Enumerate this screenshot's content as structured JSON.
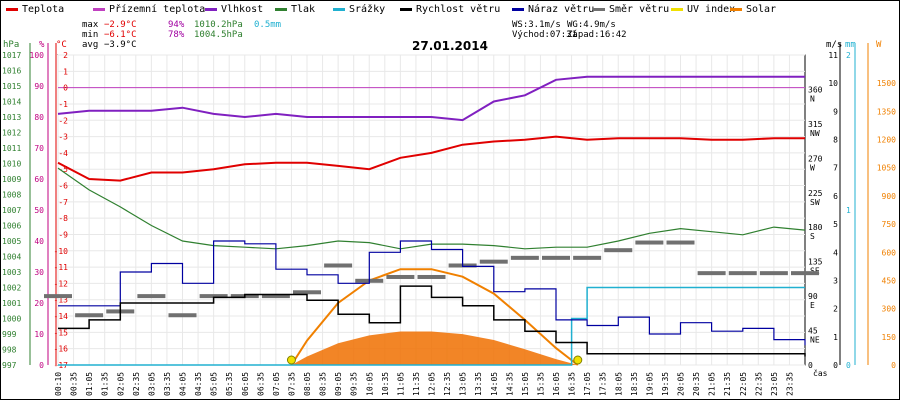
{
  "chart_data": {
    "type": "line",
    "title": "27.01.2014",
    "legend": [
      {
        "name": "Teplota",
        "color": "#e00000"
      },
      {
        "name": "Přízemní teplota",
        "color": "#c040c0"
      },
      {
        "name": "Vlhkost",
        "color": "#8020c0"
      },
      {
        "name": "Tlak",
        "color": "#308030"
      },
      {
        "name": "Srážky",
        "color": "#20b0d0"
      },
      {
        "name": "Rychlost větru",
        "color": "#000000"
      },
      {
        "name": "Náraz větru",
        "color": "#0000a0"
      },
      {
        "name": "Směr větru",
        "color": "#707070"
      },
      {
        "name": "UV index",
        "color": "#f0e000"
      },
      {
        "name": "Solar",
        "color": "#f08000"
      }
    ],
    "stats": {
      "max": {
        "label": "max",
        "temp": "−2.9°C",
        "hum": "94%",
        "press": "1010.2hPa",
        "rain": "0.5mm"
      },
      "min": {
        "label": "min",
        "temp": "−6.1°C",
        "hum": "78%",
        "press": "1004.5hPa"
      },
      "avg": {
        "label": "avg",
        "temp": "−3.9°C"
      }
    },
    "wind_info": {
      "ws": "WS:3.1m/s",
      "wg": "WG:4.9m/s",
      "sunrise": "Východ:07:31",
      "sunset": "Západ:16:42"
    },
    "axes": {
      "hpa": {
        "unit": "hPa",
        "color": "#308030",
        "range": [
          997,
          1017
        ],
        "ticks": [
          "1017",
          "1016",
          "1015",
          "1014",
          "1013",
          "1012",
          "1011",
          "1010",
          "1009",
          "1008",
          "1007",
          "1006",
          "1005",
          "1004",
          "1003",
          "1002",
          "1001",
          "1000",
          "999",
          "998",
          "997"
        ]
      },
      "humidity": {
        "unit": "%",
        "color": "#c00080",
        "range": [
          0,
          100
        ],
        "ticks": [
          "100",
          "90",
          "80",
          "70",
          "60",
          "50",
          "40",
          "30",
          "20",
          "10",
          "0"
        ]
      },
      "temperature": {
        "unit": "°C",
        "color": "#e00000",
        "range": [
          -17,
          2
        ],
        "ticks": [
          "2",
          "1",
          "0",
          "-1",
          "-2",
          "-3",
          "-4",
          "-5",
          "-6",
          "-7",
          "-8",
          "-9",
          "-10",
          "-11",
          "-12",
          "-13",
          "-14",
          "-15",
          "-16",
          "-17"
        ]
      },
      "wind_dir": {
        "ticks": [
          "360\nN",
          "315\nNW",
          "270\nW",
          "225\nSW",
          "180\nS",
          "135\nSE",
          "90\nE",
          "45\nNE",
          "0"
        ]
      },
      "wind_speed": {
        "unit": "m/s",
        "range": [
          0,
          11
        ],
        "ticks": [
          "11",
          "10",
          "9",
          "8",
          "7",
          "6",
          "5",
          "4",
          "3",
          "2",
          "1",
          "0"
        ]
      },
      "rain": {
        "unit": "mm",
        "color": "#20b0d0",
        "ticks": [
          "2",
          "1",
          "0"
        ]
      },
      "solar": {
        "unit": "W",
        "color": "#f08000",
        "range": [
          0,
          1650
        ],
        "ticks": [
          "1500",
          "1350",
          "1200",
          "1050",
          "900",
          "750",
          "600",
          "450",
          "300",
          "150",
          "0"
        ]
      },
      "x_label": "čas",
      "x_ticks": [
        "00:10",
        "00:35",
        "01:05",
        "01:35",
        "02:05",
        "02:35",
        "03:05",
        "03:35",
        "04:05",
        "04:35",
        "05:05",
        "05:35",
        "06:05",
        "06:35",
        "07:05",
        "07:35",
        "08:05",
        "08:35",
        "09:05",
        "09:35",
        "10:05",
        "10:35",
        "11:05",
        "11:35",
        "12:05",
        "12:35",
        "13:05",
        "13:35",
        "14:05",
        "14:35",
        "15:05",
        "15:35",
        "16:05",
        "16:35",
        "17:05",
        "17:35",
        "18:05",
        "18:35",
        "19:05",
        "19:35",
        "20:05",
        "20:35",
        "21:05",
        "21:35",
        "22:05",
        "22:35",
        "23:05",
        "23:35"
      ]
    },
    "series": [
      {
        "name": "Teplota",
        "key": "temp",
        "x": [
          0,
          1,
          2,
          3,
          4,
          5,
          6,
          7,
          8,
          9,
          10,
          11,
          12,
          13,
          14,
          15,
          16,
          17,
          18,
          19,
          20,
          21,
          22,
          23,
          24
        ],
        "values": [
          -4.6,
          -5.6,
          -5.7,
          -5.2,
          -5.2,
          -5.0,
          -4.7,
          -4.6,
          -4.6,
          -4.8,
          -5.0,
          -4.3,
          -4.0,
          -3.5,
          -3.3,
          -3.2,
          -3.0,
          -3.2,
          -3.1,
          -3.1,
          -3.1,
          -3.2,
          -3.2,
          -3.1,
          -3.1
        ]
      },
      {
        "name": "Vlhkost",
        "key": "hum",
        "x": [
          0,
          1,
          2,
          3,
          4,
          5,
          6,
          7,
          8,
          9,
          10,
          11,
          12,
          13,
          14,
          15,
          16,
          17,
          18,
          19,
          20,
          21,
          22,
          23,
          24
        ],
        "values": [
          81,
          82,
          82,
          82,
          83,
          81,
          80,
          81,
          80,
          80,
          80,
          80,
          80,
          79,
          85,
          87,
          92,
          93,
          93,
          93,
          93,
          93,
          93,
          93,
          93
        ]
      },
      {
        "name": "Tlak",
        "key": "press",
        "x": [
          0,
          1,
          2,
          3,
          4,
          5,
          6,
          7,
          8,
          9,
          10,
          11,
          12,
          13,
          14,
          15,
          16,
          17,
          18,
          19,
          20,
          21,
          22,
          23,
          24
        ],
        "values": [
          1009.7,
          1008.3,
          1007.2,
          1006.0,
          1005.0,
          1004.7,
          1004.6,
          1004.5,
          1004.7,
          1005.0,
          1004.9,
          1004.5,
          1004.8,
          1004.8,
          1004.7,
          1004.5,
          1004.6,
          1004.6,
          1005.0,
          1005.5,
          1005.8,
          1005.6,
          1005.4,
          1005.9,
          1005.7
        ]
      },
      {
        "name": "Srážky",
        "key": "rain",
        "x": [
          0,
          16.5,
          16.5,
          17.0,
          17.0,
          24
        ],
        "values": [
          0,
          0,
          0.3,
          0.3,
          0.5,
          0.5
        ]
      },
      {
        "name": "Rychlost větru",
        "key": "speed",
        "x": [
          0,
          1,
          2,
          3,
          4,
          5,
          6,
          7,
          8,
          9,
          10,
          11,
          12,
          13,
          14,
          15,
          16,
          17,
          18,
          19,
          20,
          21,
          22,
          23,
          24
        ],
        "values": [
          1.3,
          1.6,
          2.2,
          2.2,
          2.2,
          2.4,
          2.5,
          2.5,
          2.3,
          1.8,
          1.5,
          2.8,
          2.4,
          2.1,
          1.6,
          1.2,
          0.8,
          0.4,
          0.4,
          0.4,
          0.4,
          0.4,
          0.4,
          0.4,
          0.3
        ]
      },
      {
        "name": "Náraz větru",
        "key": "gust",
        "x": [
          0,
          1,
          2,
          3,
          4,
          5,
          6,
          7,
          8,
          9,
          10,
          11,
          12,
          13,
          14,
          15,
          16,
          17,
          18,
          19,
          20,
          21,
          22,
          23,
          24
        ],
        "values": [
          2.1,
          2.1,
          3.3,
          3.6,
          2.9,
          4.4,
          4.3,
          3.4,
          3.2,
          2.9,
          4.0,
          4.4,
          4.1,
          3.5,
          2.6,
          2.7,
          1.6,
          1.4,
          1.7,
          1.1,
          1.5,
          1.2,
          1.3,
          0.9,
          0.7
        ]
      },
      {
        "name": "Směr větru",
        "key": "dir",
        "x": [
          0,
          1,
          2,
          3,
          4,
          5,
          6,
          7,
          8,
          9,
          10,
          11,
          12,
          13,
          14,
          15,
          16,
          17,
          18,
          19,
          20,
          21,
          22,
          23,
          24
        ],
        "values": [
          90,
          65,
          70,
          90,
          65,
          90,
          90,
          90,
          95,
          130,
          110,
          115,
          115,
          130,
          135,
          140,
          140,
          140,
          150,
          160,
          160,
          120,
          120,
          120,
          120
        ]
      },
      {
        "name": "Solar",
        "key": "solar",
        "x": [
          7.5,
          8,
          9,
          10,
          11,
          12,
          13,
          14,
          15,
          16,
          16.7
        ],
        "values": [
          0,
          130,
          330,
          450,
          510,
          510,
          470,
          380,
          240,
          90,
          0
        ]
      }
    ],
    "sun_markers": [
      7.5,
      16.7
    ]
  }
}
